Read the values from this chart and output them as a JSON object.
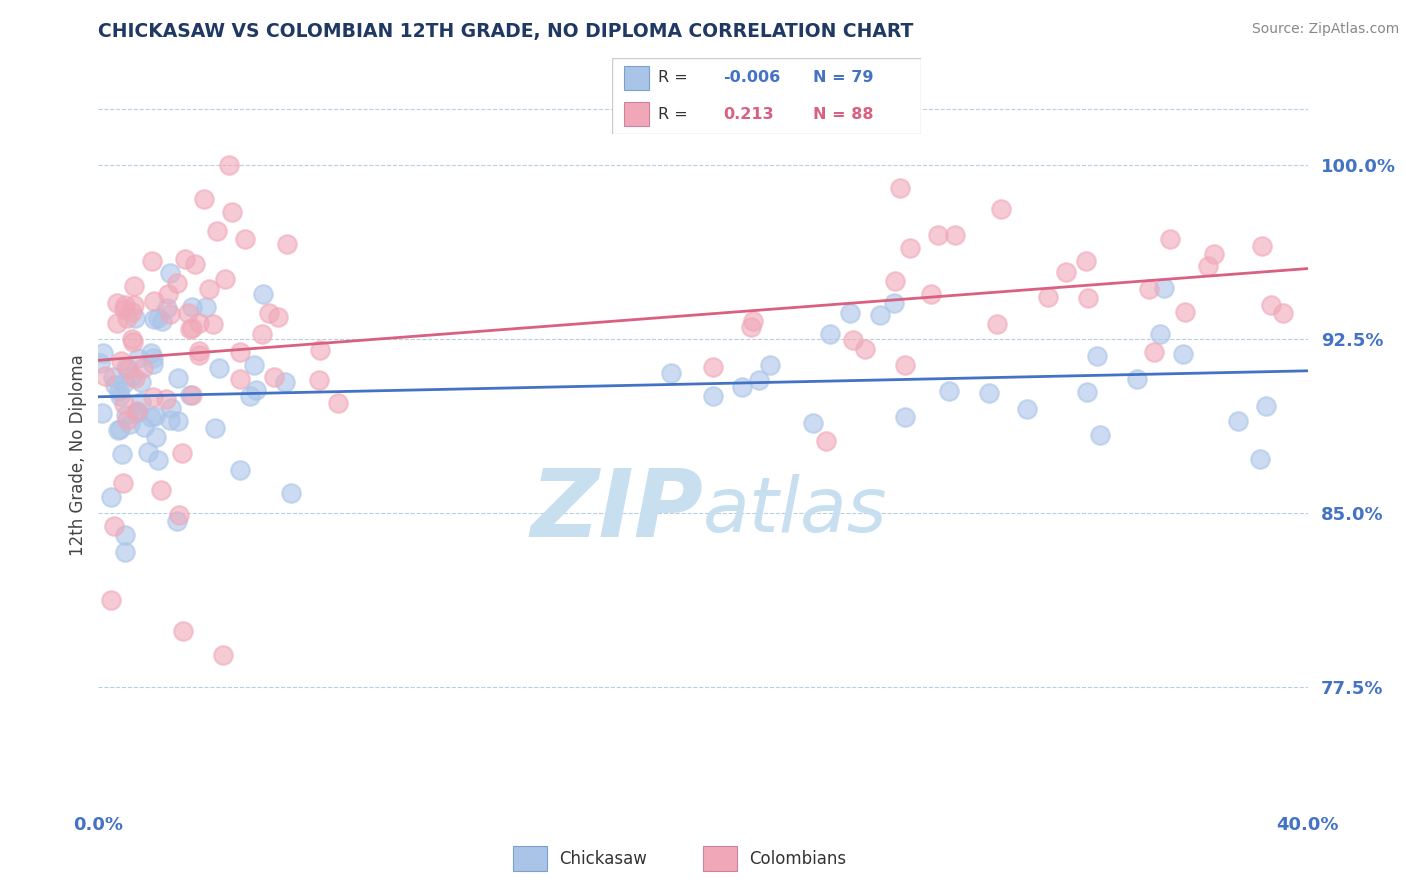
{
  "title": "CHICKASAW VS COLOMBIAN 12TH GRADE, NO DIPLOMA CORRELATION CHART",
  "source": "Source: ZipAtlas.com",
  "ylabel": "12th Grade, No Diploma",
  "yticks": [
    0.775,
    0.85,
    0.925,
    1.0
  ],
  "ytick_labels": [
    "77.5%",
    "85.0%",
    "92.5%",
    "100.0%"
  ],
  "xlim": [
    0.0,
    0.4
  ],
  "ylim": [
    0.725,
    1.025
  ],
  "legend_label1": "Chickasaw",
  "legend_label2": "Colombians",
  "r1": -0.006,
  "n1": 79,
  "r2": 0.213,
  "n2": 88,
  "color_chickasaw": "#aac4e8",
  "color_colombian": "#f0a8b8",
  "trendline_blue": "#4472c4",
  "trendline_pink": "#d96080",
  "title_color": "#1f3864",
  "axis_label_color": "#4472c4",
  "r_color_blue": "#4472c4",
  "r_color_pink": "#d96080",
  "grid_color": "#b8cfe0",
  "watermark_color": "#c8dff0"
}
